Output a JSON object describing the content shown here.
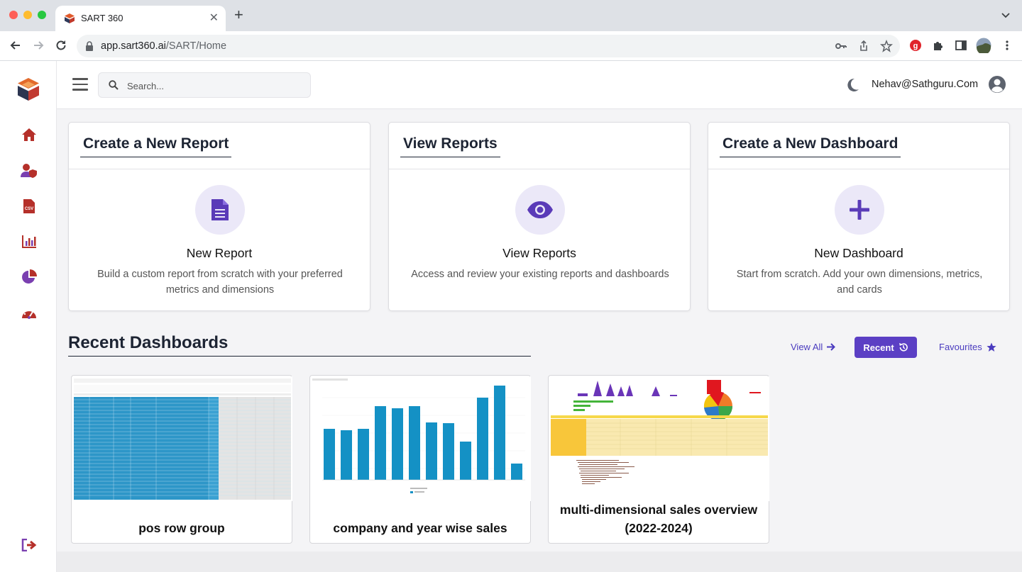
{
  "browser": {
    "tab_title": "SART 360",
    "url_domain": "app.sart360.ai",
    "url_path": "/SART/Home"
  },
  "topbar": {
    "search_placeholder": "Search...",
    "user_email": "Nehav@Sathguru.Com"
  },
  "sidebar": {
    "items": [
      {
        "icon": "home-icon"
      },
      {
        "icon": "user-shield-icon"
      },
      {
        "icon": "csv-file-icon"
      },
      {
        "icon": "bar-chart-icon"
      },
      {
        "icon": "pie-chart-icon"
      },
      {
        "icon": "gauge-icon"
      }
    ],
    "logout_icon": "logout-icon"
  },
  "cards": [
    {
      "title": "Create a New Report",
      "name": "New Report",
      "description": "Build a custom report from scratch with your preferred metrics and dimensions",
      "icon": "document-icon"
    },
    {
      "title": "View Reports",
      "name": "View Reports",
      "description": "Access and review your existing reports and dashboards",
      "icon": "eye-icon"
    },
    {
      "title": "Create a New Dashboard",
      "name": "New Dashboard",
      "description": "Start from scratch. Add your own dimensions, metrics, and cards",
      "icon": "plus-icon"
    }
  ],
  "recent": {
    "title": "Recent Dashboards",
    "view_all": "View All",
    "recent_label": "Recent",
    "favourites_label": "Favourites"
  },
  "dashboards": [
    {
      "title": "pos row group"
    },
    {
      "title": "company and year wise sales"
    },
    {
      "title": "multi-dimensional sales overview (2022-2024)"
    }
  ],
  "colors": {
    "accent": "#5b3fc4",
    "icon_purple": "#5a3bb8",
    "sidebar_icon": "#b0392e"
  }
}
